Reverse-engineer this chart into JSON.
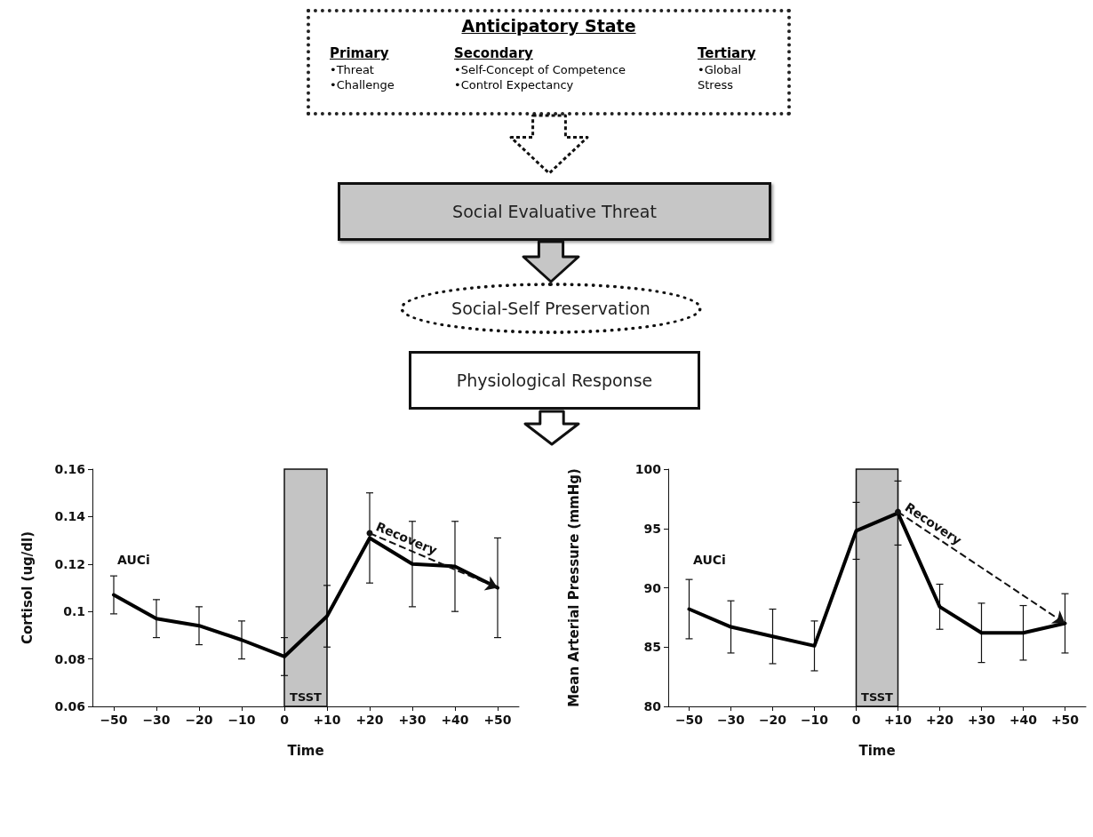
{
  "chart_data": [
    {
      "type": "other",
      "title": "Anticipatory State",
      "annotations": [
        "Primary\n•Threat\n•Challenge",
        "Secondary\n•Self-Concept of Competence\n•Control Expectancy",
        "Tertiary\n•Global Stress",
        "Social Evaluative Threat",
        "Social-Self Preservation",
        "Physiological Response"
      ]
    },
    {
      "type": "line",
      "xlabel": "Time",
      "ylabel": "Cortisol (ug/dl)",
      "categories": [
        "−50",
        "−30",
        "−20",
        "−10",
        "0",
        "+10",
        "+20",
        "+30",
        "+40",
        "+50"
      ],
      "values": [
        0.107,
        0.097,
        0.094,
        0.088,
        0.081,
        0.098,
        0.131,
        0.12,
        0.119,
        0.11
      ],
      "errors": [
        0.008,
        0.008,
        0.008,
        0.008,
        0.008,
        0.013,
        0.019,
        0.018,
        0.019,
        0.021
      ],
      "color": "#000000",
      "marker": "none",
      "line_style": "solid",
      "ylim": [
        0.06,
        0.16
      ],
      "yticks": [
        0.06,
        0.08,
        0.1,
        0.12,
        0.14,
        0.16
      ],
      "bands": [
        {
          "axis": "x",
          "from": "0",
          "to": "+10",
          "label": "TSST",
          "color": "#c4c4c4"
        }
      ],
      "annotations": [
        "AUCi",
        {
          "text": "Recovery",
          "x": "+20",
          "y": 0.133
        }
      ]
    },
    {
      "type": "line",
      "xlabel": "Time",
      "ylabel": "Mean Arterial Pressure (mmHg)",
      "categories": [
        "−50",
        "−30",
        "−20",
        "−10",
        "0",
        "+10",
        "+20",
        "+30",
        "+40",
        "+50"
      ],
      "values": [
        88.2,
        86.7,
        85.9,
        85.1,
        94.8,
        96.3,
        88.4,
        86.2,
        86.2,
        87.0
      ],
      "errors": [
        2.5,
        2.2,
        2.3,
        2.1,
        2.4,
        2.7,
        1.9,
        2.5,
        2.3,
        2.5
      ],
      "color": "#000000",
      "marker": "none",
      "line_style": "solid",
      "ylim": [
        80,
        100
      ],
      "yticks": [
        80,
        85,
        90,
        95,
        100
      ],
      "bands": [
        {
          "axis": "x",
          "from": "0",
          "to": "+10",
          "label": "TSST",
          "color": "#c4c4c4"
        }
      ],
      "annotations": [
        "AUCi",
        {
          "text": "Recovery",
          "x": "+10",
          "y": 96.4
        }
      ]
    }
  ]
}
